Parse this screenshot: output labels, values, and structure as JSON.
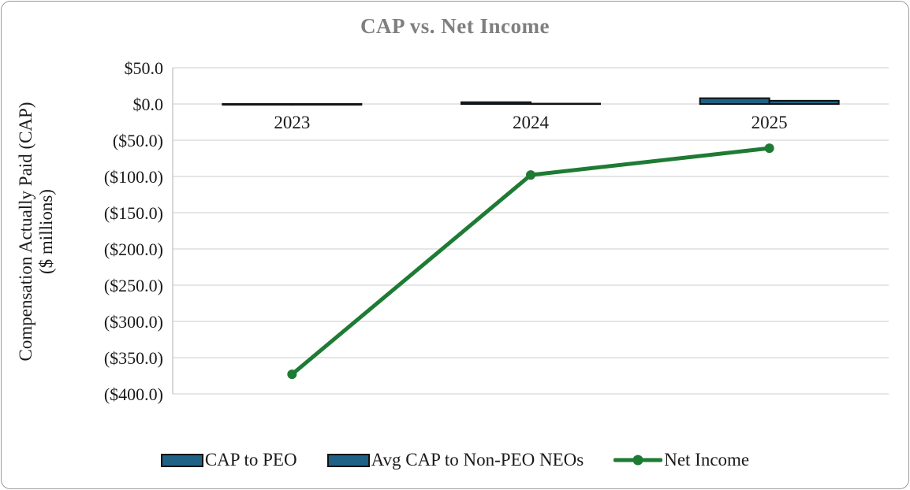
{
  "chart_data": {
    "type": "combo-bar-line",
    "title": "CAP vs. Net Income",
    "y_axis_title_line1": "Compensation Actually Paid (CAP)",
    "y_axis_title_line2": "($ millions)",
    "categories": [
      "2023",
      "2024",
      "2025"
    ],
    "y_tick_labels": [
      "$50.0",
      "$0.0",
      "($50.0)",
      "($100.0)",
      "($150.0)",
      "($200.0)",
      "($250.0)",
      "($300.0)",
      "($350.0)",
      "($400.0)"
    ],
    "y_tick_values": [
      50,
      0,
      -50,
      -100,
      -150,
      -200,
      -250,
      -300,
      -350,
      -400
    ],
    "ylim": [
      -400,
      50
    ],
    "units": "$ millions",
    "grid": true,
    "legend_position": "bottom",
    "colors": {
      "bar_fill": "#1F6285",
      "bar_border": "#111111",
      "line": "#1E7B34",
      "gridline": "#D6D6D6",
      "axis_border": "#BFBFBF",
      "title": "#7f7f7f",
      "tick_text": "#1a1a1a"
    },
    "series": [
      {
        "name": "CAP to PEO",
        "type": "bar",
        "color": "#1F6285",
        "values": [
          -1.0,
          2.5,
          8.0
        ]
      },
      {
        "name": "Avg CAP to Non-PEO NEOs",
        "type": "bar",
        "color": "#1F6285",
        "values": [
          -1.0,
          0.5,
          4.5
        ]
      },
      {
        "name": "Net Income",
        "type": "line",
        "color": "#1E7B34",
        "values": [
          -373,
          -98,
          -61
        ]
      }
    ]
  }
}
